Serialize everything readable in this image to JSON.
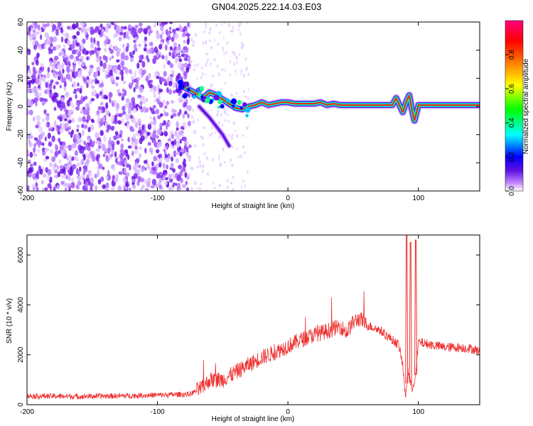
{
  "title": "GN04.2025.222.14.03.E03",
  "chart_data": [
    {
      "type": "heatmap",
      "xlabel": "Height of straight line (km)",
      "ylabel": "Frequency (Hz)",
      "xlim": [
        -200,
        147
      ],
      "ylim": [
        -60,
        60
      ],
      "xticks": [
        -200,
        -100,
        0,
        100
      ],
      "yticks": [
        -60,
        -40,
        -20,
        0,
        20,
        40,
        60
      ],
      "colorbar": {
        "label": "Normalized spectral amplitude",
        "range": [
          0.0,
          1.0
        ],
        "ticks": [
          "0.0",
          "0.2",
          "0.4",
          "0.6",
          "0.8"
        ],
        "stops": [
          "#ffffff",
          "#c080ff",
          "#6010e0",
          "#0000ff",
          "#00ffff",
          "#00ff00",
          "#ffff00",
          "#ff8000",
          "#ff0000",
          "#ff0080"
        ]
      },
      "noise_region_x": [
        -200,
        -75
      ],
      "ridge": [
        [
          -80,
          14
        ],
        [
          -72,
          10
        ],
        [
          -65,
          6
        ],
        [
          -60,
          10
        ],
        [
          -55,
          8
        ],
        [
          -50,
          5
        ],
        [
          -45,
          2
        ],
        [
          -40,
          -1
        ],
        [
          -35,
          -2
        ],
        [
          -30,
          0
        ],
        [
          -25,
          1
        ],
        [
          -20,
          3
        ],
        [
          -15,
          1
        ],
        [
          -10,
          2
        ],
        [
          -5,
          3
        ],
        [
          0,
          3
        ],
        [
          5,
          2
        ],
        [
          10,
          2
        ],
        [
          15,
          2
        ],
        [
          20,
          2
        ],
        [
          25,
          3
        ],
        [
          30,
          1
        ],
        [
          35,
          2
        ],
        [
          40,
          1
        ],
        [
          50,
          1
        ],
        [
          60,
          1
        ],
        [
          70,
          1
        ],
        [
          80,
          1
        ],
        [
          83,
          6
        ],
        [
          86,
          0
        ],
        [
          88,
          -4
        ],
        [
          91,
          4
        ],
        [
          93,
          8
        ],
        [
          95,
          -2
        ],
        [
          97,
          -10
        ],
        [
          100,
          1
        ],
        [
          110,
          1
        ],
        [
          120,
          1
        ],
        [
          130,
          1
        ],
        [
          140,
          1
        ],
        [
          147,
          1
        ]
      ],
      "branch": [
        [
          -68,
          0
        ],
        [
          -60,
          -8
        ],
        [
          -55,
          -14
        ],
        [
          -50,
          -20
        ],
        [
          -45,
          -28
        ]
      ]
    },
    {
      "type": "line",
      "xlabel": "Height of straight line (km)",
      "ylabel": "SNR (10 * v/v)",
      "xlim": [
        -200,
        147
      ],
      "ylim": [
        0,
        6800
      ],
      "xticks": [
        -200,
        -100,
        0,
        100
      ],
      "yticks": [
        0,
        2000,
        4000,
        6000
      ],
      "color": "#ee3030",
      "envelope": [
        [
          -200,
          350
        ],
        [
          -160,
          330
        ],
        [
          -120,
          360
        ],
        [
          -75,
          420
        ],
        [
          -65,
          700
        ],
        [
          -60,
          1000
        ],
        [
          -50,
          1000
        ],
        [
          -40,
          1300
        ],
        [
          -30,
          1600
        ],
        [
          -20,
          1900
        ],
        [
          -10,
          2100
        ],
        [
          0,
          2350
        ],
        [
          10,
          2600
        ],
        [
          20,
          2800
        ],
        [
          30,
          2950
        ],
        [
          40,
          3150
        ],
        [
          45,
          2900
        ],
        [
          50,
          3300
        ],
        [
          55,
          3450
        ],
        [
          60,
          3200
        ],
        [
          70,
          3000
        ],
        [
          80,
          2600
        ],
        [
          85,
          2400
        ],
        [
          88,
          1600
        ],
        [
          90,
          300
        ],
        [
          92,
          1400
        ],
        [
          95,
          600
        ],
        [
          98,
          1200
        ],
        [
          100,
          2500
        ],
        [
          110,
          2400
        ],
        [
          120,
          2300
        ],
        [
          130,
          2300
        ],
        [
          140,
          2250
        ],
        [
          147,
          2150
        ]
      ],
      "spikes": [
        [
          91,
          6800
        ],
        [
          94,
          6500
        ],
        [
          98,
          6600
        ]
      ]
    }
  ]
}
